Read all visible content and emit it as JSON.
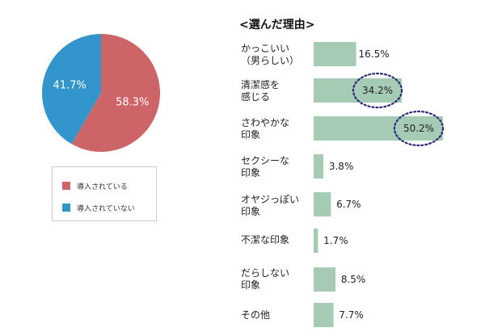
{
  "chart_data": [
    {
      "type": "pie",
      "slices": [
        {
          "label": "導入されている",
          "value": 58.3,
          "value_label": "58.3%",
          "color": "#cd6468"
        },
        {
          "label": "導入されていない",
          "value": 41.7,
          "value_label": "41.7%",
          "color": "#3296cc"
        }
      ],
      "legend": [
        "導入されている",
        "導入されていない"
      ],
      "legend_placement": "bottom"
    },
    {
      "type": "bar",
      "orientation": "horizontal",
      "title": "<選んだ理由>",
      "categories": [
        "かっこいい\n（男らしい）",
        "清潔感を\n感じる",
        "さわやかな\n印象",
        "セクシーな\n印象",
        "オヤジっぽい\n印象",
        "不潔な印象",
        "だらしない\n印象",
        "その他"
      ],
      "values": [
        16.5,
        34.2,
        50.2,
        3.8,
        6.7,
        1.7,
        8.5,
        7.7
      ],
      "value_labels": [
        "16.5%",
        "34.2%",
        "50.2%",
        "3.8%",
        "6.7%",
        "1.7%",
        "8.5%",
        "7.7%"
      ],
      "highlighted": [
        "34.2%",
        "50.2%"
      ],
      "bar_color": "#a6cbb5",
      "highlight_color": "#2a2a7a"
    }
  ]
}
